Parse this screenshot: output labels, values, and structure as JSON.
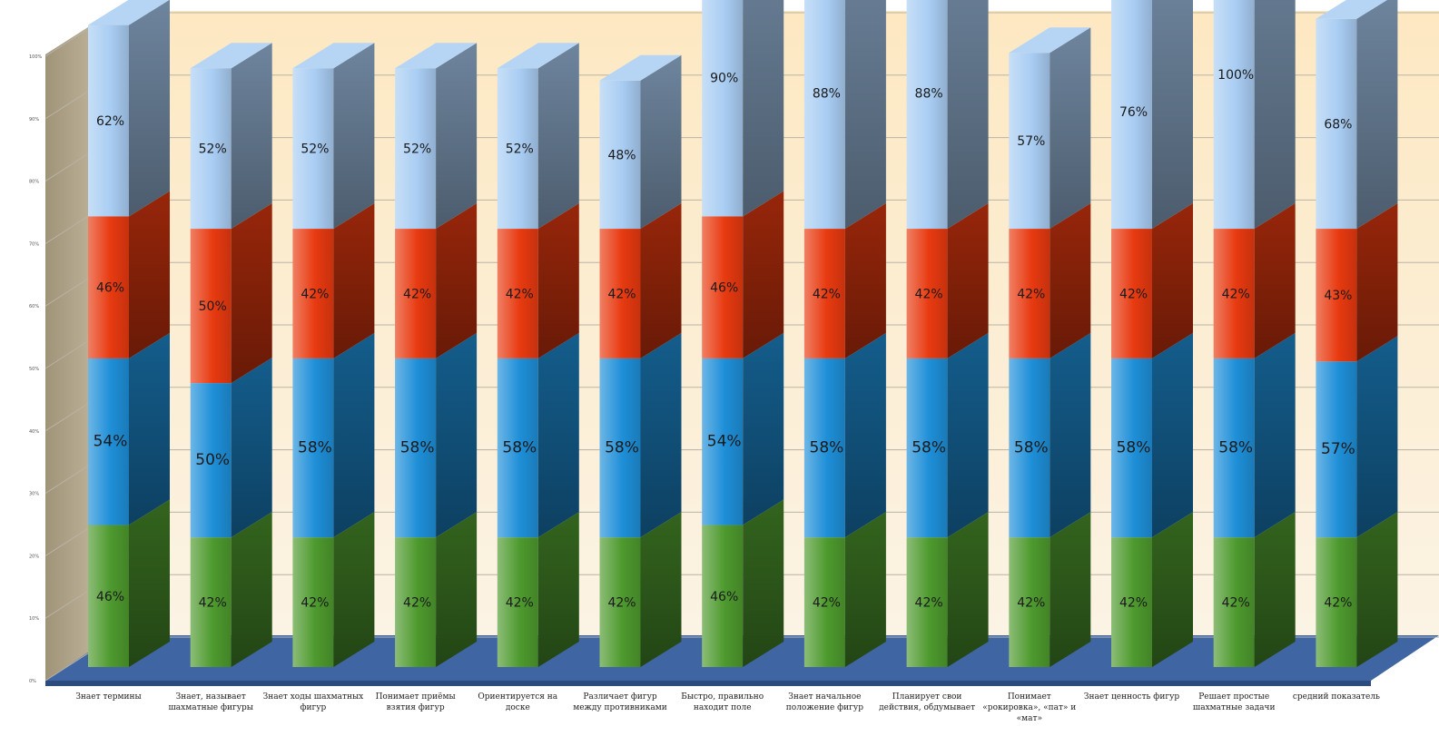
{
  "chart_data": {
    "type": "bar",
    "stacked": true,
    "three_d": true,
    "title": "",
    "xlabel": "",
    "ylabel": "",
    "y_ticks": [
      "0%",
      "10%",
      "20%",
      "30%",
      "40%",
      "50%",
      "60%",
      "70%",
      "80%",
      "90%",
      "100%"
    ],
    "categories": [
      "Знает термины",
      "Знает, называет шахматные фигуры",
      "Знает ходы шахматных фигур",
      "Понимает приёмы взятия фигур",
      "Ориентируется на доске",
      "Различает фигур между противниками",
      "Быстро, правильно находит поле",
      "Знает начальное положение фигур",
      "Планирует свои действия, обдумывает",
      "Понимает «рокировка», «пат» и «мат»",
      "Знает ценность фигур",
      "Решает простые шахматные задачи",
      "средний показатель"
    ],
    "series": [
      {
        "color": "#4e9a2e",
        "values": [
          46,
          42,
          42,
          42,
          42,
          42,
          46,
          42,
          42,
          42,
          42,
          42,
          42
        ],
        "labels": [
          "46%",
          "42%",
          "42%",
          "42%",
          "42%",
          "42%",
          "46%",
          "42%",
          "42%",
          "42%",
          "42%",
          "42%",
          "42%"
        ]
      },
      {
        "color": "#1e8fd8",
        "values": [
          54,
          50,
          58,
          58,
          58,
          58,
          54,
          58,
          58,
          58,
          58,
          58,
          57
        ],
        "labels": [
          "54%",
          "50%",
          "58%",
          "58%",
          "58%",
          "58%",
          "54%",
          "58%",
          "58%",
          "58%",
          "58%",
          "58%",
          "57%"
        ]
      },
      {
        "color": "#e83a10",
        "values": [
          46,
          50,
          42,
          42,
          42,
          42,
          46,
          42,
          42,
          42,
          42,
          42,
          43
        ],
        "labels": [
          "46%",
          "50%",
          "42%",
          "42%",
          "42%",
          "42%",
          "46%",
          "42%",
          "42%",
          "42%",
          "42%",
          "42%",
          "43%"
        ]
      },
      {
        "color": "#a9cdf3",
        "values": [
          62,
          52,
          52,
          52,
          52,
          48,
          90,
          88,
          88,
          57,
          76,
          100,
          68
        ],
        "labels": [
          "62%",
          "52%",
          "52%",
          "52%",
          "52%",
          "48%",
          "90%",
          "88%",
          "88%",
          "57%",
          "76%",
          "100%",
          "68%"
        ]
      }
    ]
  },
  "colors": {
    "wall": "#fbe9c9",
    "floor": "#3f66a3",
    "side_wall": "#b0a48a",
    "gridline": "#b9b3a6"
  }
}
